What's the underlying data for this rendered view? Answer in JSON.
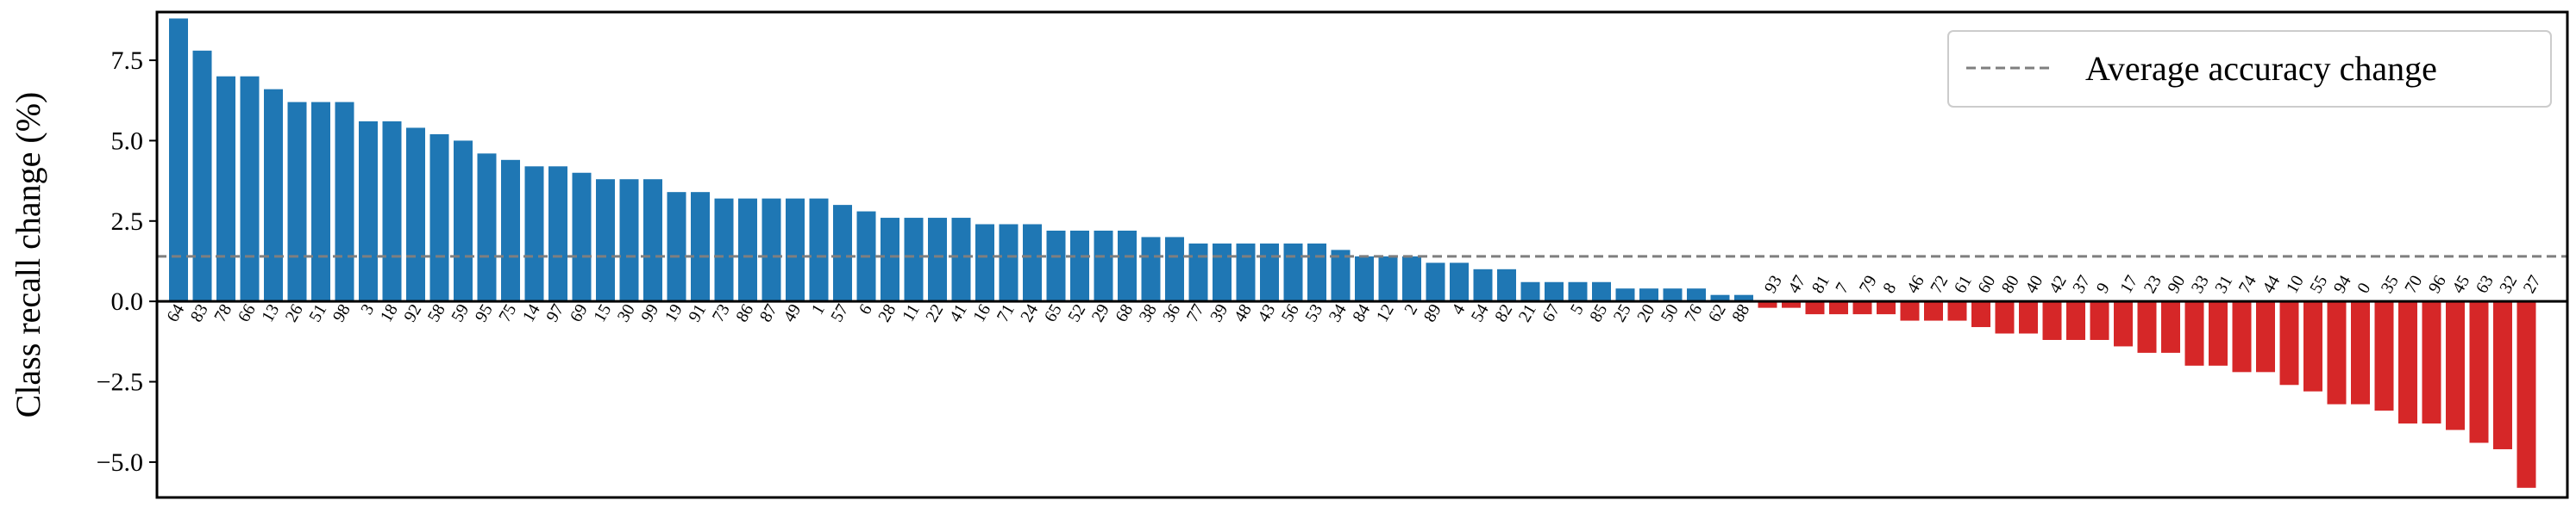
{
  "chart_data": {
    "type": "bar",
    "ylabel": "Class recall change (%)",
    "ylim": [
      -6.1,
      9.0
    ],
    "yticks": [
      -5.0,
      -2.5,
      0.0,
      2.5,
      5.0,
      7.5
    ],
    "ytick_labels": [
      "−5.0",
      "−2.5",
      "0.0",
      "2.5",
      "5.0",
      "7.5"
    ],
    "categories": [
      "64",
      "83",
      "78",
      "66",
      "13",
      "26",
      "51",
      "98",
      "3",
      "18",
      "92",
      "58",
      "59",
      "95",
      "75",
      "14",
      "97",
      "69",
      "15",
      "30",
      "99",
      "19",
      "91",
      "73",
      "86",
      "87",
      "49",
      "1",
      "57",
      "6",
      "28",
      "11",
      "22",
      "41",
      "16",
      "71",
      "24",
      "65",
      "52",
      "29",
      "68",
      "38",
      "36",
      "77",
      "39",
      "48",
      "43",
      "56",
      "53",
      "34",
      "84",
      "12",
      "2",
      "89",
      "4",
      "54",
      "82",
      "21",
      "67",
      "5",
      "85",
      "25",
      "20",
      "50",
      "76",
      "62",
      "88",
      "93",
      "47",
      "81",
      "7",
      "79",
      "8",
      "46",
      "72",
      "61",
      "60",
      "80",
      "40",
      "42",
      "37",
      "9",
      "17",
      "23",
      "90",
      "33",
      "31",
      "74",
      "44",
      "10",
      "55",
      "94",
      "0",
      "35",
      "70",
      "96",
      "45",
      "63",
      "32",
      "27"
    ],
    "values": [
      8.8,
      7.8,
      7.0,
      7.0,
      6.6,
      6.2,
      6.2,
      6.2,
      5.6,
      5.6,
      5.4,
      5.2,
      5.0,
      4.6,
      4.4,
      4.2,
      4.2,
      4.0,
      3.8,
      3.8,
      3.8,
      3.4,
      3.4,
      3.2,
      3.2,
      3.2,
      3.2,
      3.2,
      3.0,
      2.8,
      2.6,
      2.6,
      2.6,
      2.6,
      2.4,
      2.4,
      2.4,
      2.2,
      2.2,
      2.2,
      2.2,
      2.0,
      2.0,
      1.8,
      1.8,
      1.8,
      1.8,
      1.8,
      1.8,
      1.6,
      1.4,
      1.4,
      1.4,
      1.2,
      1.2,
      1.0,
      1.0,
      0.6,
      0.6,
      0.6,
      0.6,
      0.4,
      0.4,
      0.4,
      0.4,
      0.2,
      0.2,
      -0.2,
      -0.2,
      -0.4,
      -0.4,
      -0.4,
      -0.4,
      -0.6,
      -0.6,
      -0.6,
      -0.8,
      -1.0,
      -1.0,
      -1.2,
      -1.2,
      -1.2,
      -1.4,
      -1.6,
      -1.6,
      -2.0,
      -2.0,
      -2.2,
      -2.2,
      -2.6,
      -2.8,
      -3.2,
      -3.2,
      -3.4,
      -3.8,
      -3.8,
      -4.0,
      -4.4,
      -4.6,
      -5.8
    ],
    "average_line": {
      "value": 1.4,
      "label": "Average accuracy change",
      "style": "dashed"
    },
    "colors": {
      "positive": "#1f77b4",
      "negative": "#d62728",
      "average": "#7f7f7f"
    },
    "legend_position": "top-right",
    "grid": false
  }
}
